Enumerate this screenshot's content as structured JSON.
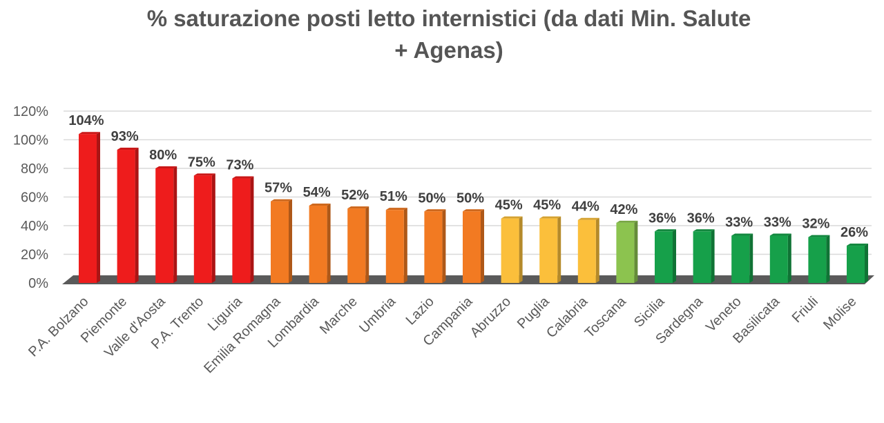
{
  "chart_data": {
    "type": "bar",
    "title_lines": [
      "% saturazione posti letto internistici (da dati Min. Salute",
      "+ Agenas)"
    ],
    "categories": [
      "P.A. Bolzano",
      "Piemonte",
      "Valle d'Aosta",
      "P.A. Trento",
      "Liguria",
      "Emilia Romagna",
      "Lombardia",
      "Marche",
      "Umbria",
      "Lazio",
      "Campania",
      "Abruzzo",
      "Puglia",
      "Calabria",
      "Toscana",
      "Sicilia",
      "Sardegna",
      "Veneto",
      "Basilicata",
      "Friuli",
      "Molise"
    ],
    "values": [
      104,
      93,
      80,
      75,
      73,
      57,
      54,
      52,
      51,
      50,
      50,
      45,
      45,
      44,
      42,
      36,
      36,
      33,
      33,
      32,
      26
    ],
    "data_labels": [
      "104%",
      "93%",
      "80%",
      "75%",
      "73%",
      "57%",
      "54%",
      "52%",
      "51%",
      "50%",
      "50%",
      "45%",
      "45%",
      "44%",
      "42%",
      "36%",
      "36%",
      "33%",
      "33%",
      "32%",
      "26%"
    ],
    "bar_colors": [
      "#ee1c1c",
      "#ee1c1c",
      "#ee1c1c",
      "#ee1c1c",
      "#ee1c1c",
      "#f27a22",
      "#f27a22",
      "#f27a22",
      "#f27a22",
      "#f27a22",
      "#f27a22",
      "#fbbf3b",
      "#fbbf3b",
      "#fbbf3b",
      "#8cc34f",
      "#16a04a",
      "#16a04a",
      "#16a04a",
      "#16a04a",
      "#16a04a",
      "#16a04a"
    ],
    "yticks": [
      0,
      20,
      40,
      60,
      80,
      100,
      120
    ],
    "ytick_labels": [
      "0%",
      "20%",
      "40%",
      "60%",
      "80%",
      "100%",
      "120%"
    ],
    "ylim": [
      0,
      120
    ],
    "xlabel": "",
    "ylabel": "",
    "grid": true,
    "legend": "none",
    "floor_color": "#5a5a5a"
  }
}
